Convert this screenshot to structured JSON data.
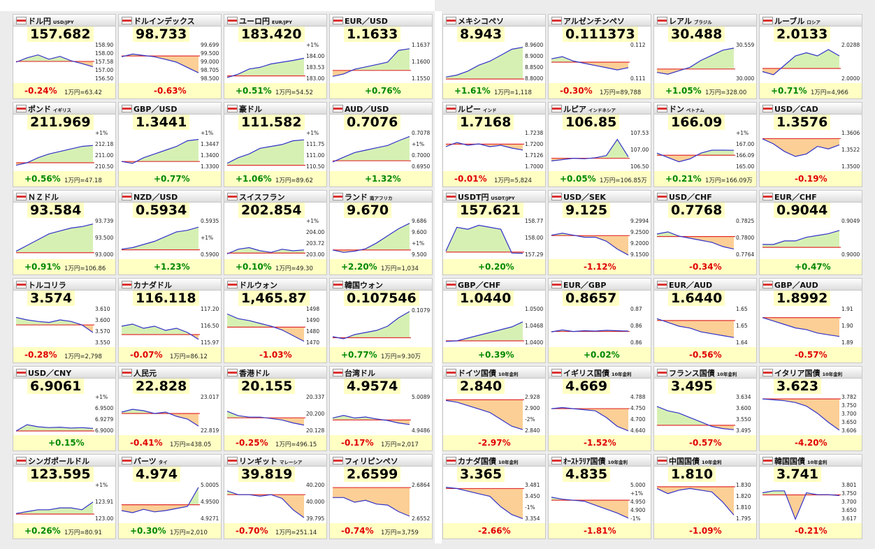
{
  "tiles": [
    {
      "name": "ドル円",
      "sub": "USD/JPY",
      "price": "157.682",
      "change": "-0.24%",
      "yen": "1万円=63.42",
      "labels": [
        "158.90",
        "158.00",
        "157.58",
        "157.00",
        "156.50"
      ],
      "ref": 157.95,
      "ylim": [
        156.6,
        159.2
      ],
      "line": [
        157.9,
        158.2,
        158.4,
        158.1,
        158.3,
        158.0,
        157.8,
        157.58
      ]
    },
    {
      "name": "ドルインデックス",
      "price": "98.733",
      "change": "-0.63%",
      "labels": [
        "99.699",
        "99.500",
        "99.000",
        "98.705",
        "98.500"
      ],
      "ref": 99.33,
      "ylim": [
        98.4,
        99.8
      ],
      "line": [
        99.3,
        99.4,
        99.35,
        99.3,
        99.2,
        99.1,
        98.9,
        98.705
      ]
    },
    {
      "name": "ユーロ円",
      "sub": "EUR/JPY",
      "price": "183.420",
      "change": "+0.51%",
      "yen": "1万円=54.52",
      "labels": [
        "+1%",
        "184.00",
        "183.53",
        "183.00"
      ],
      "ref": 182.5,
      "ylim": [
        182.2,
        184.4
      ],
      "line": [
        182.4,
        182.6,
        182.9,
        183.0,
        183.2,
        183.3,
        183.4,
        183.53
      ]
    },
    {
      "name": "EUR／USD",
      "price": "1.1633",
      "change": "+0.76%",
      "labels": [
        "1.1637",
        "1.1600",
        "1.1550"
      ],
      "ref": 1.1545,
      "ylim": [
        1.15,
        1.166
      ],
      "line": [
        1.152,
        1.153,
        1.155,
        1.156,
        1.157,
        1.158,
        1.163,
        1.1637
      ]
    },
    {
      "name": "メキシコペソ",
      "price": "8.943",
      "change": "+1.61%",
      "yen": "1万円=1,118",
      "labels": [
        "8.9600",
        "8.9000",
        "8.8500",
        "8.8000"
      ],
      "ref": 8.8,
      "ylim": [
        8.79,
        8.98
      ],
      "line": [
        8.81,
        8.82,
        8.84,
        8.87,
        8.89,
        8.92,
        8.95,
        8.96
      ]
    },
    {
      "name": "アルゼンチンペソ",
      "price": "0.111373",
      "change": "-0.30%",
      "yen": "1万円=89,788",
      "labels": [
        "0.112",
        "0.111"
      ],
      "ref": 0.11135,
      "ylim": [
        0.1105,
        0.1122
      ],
      "line": [
        0.1115,
        0.1116,
        0.1114,
        0.1113,
        0.1112,
        0.1111,
        0.111,
        0.1111
      ]
    },
    {
      "name": "レアル",
      "sub": "ブラジル",
      "price": "30.488",
      "change": "+1.05%",
      "yen": "1万円=328.00",
      "labels": [
        "30.559",
        "30.000"
      ],
      "ref": 29.95,
      "ylim": [
        29.6,
        30.7
      ],
      "line": [
        29.85,
        29.8,
        29.9,
        30.0,
        30.2,
        30.35,
        30.5,
        30.559
      ]
    },
    {
      "name": "ルーブル",
      "sub": "ロシア",
      "price": "2.0133",
      "change": "+0.71%",
      "yen": "1万円=4,966",
      "labels": [
        "2.0288",
        "2.0000"
      ],
      "ref": 2.0,
      "ylim": [
        1.98,
        2.04
      ],
      "line": [
        1.995,
        1.99,
        2.005,
        2.02,
        2.025,
        2.02,
        2.03,
        2.02
      ]
    },
    {
      "name": "ポンド",
      "sub": "イギリス",
      "price": "211.969",
      "change": "+0.56%",
      "yen": "1万円=47.18",
      "labels": [
        "+1%",
        "212.18",
        "211.00",
        "210.50"
      ],
      "ref": 210.8,
      "ylim": [
        210.3,
        213.3
      ],
      "line": [
        210.6,
        210.8,
        211.2,
        211.5,
        211.7,
        211.9,
        212.1,
        212.18
      ]
    },
    {
      "name": "GBP／USD",
      "price": "1.3441",
      "change": "+0.77%",
      "labels": [
        "+1%",
        "1.3447",
        "1.3400",
        "1.3300"
      ],
      "ref": 1.333,
      "ylim": [
        1.329,
        1.349
      ],
      "line": [
        1.333,
        1.332,
        1.335,
        1.337,
        1.339,
        1.341,
        1.344,
        1.3447
      ]
    },
    {
      "name": "豪ドル",
      "price": "111.582",
      "change": "+1.06%",
      "yen": "1万円=89.62",
      "labels": [
        "+1%",
        "111.75",
        "111.00",
        "110.50"
      ],
      "ref": 110.4,
      "ylim": [
        110.2,
        112.2
      ],
      "line": [
        110.5,
        110.8,
        111.0,
        111.3,
        111.4,
        111.5,
        111.7,
        111.75
      ]
    },
    {
      "name": "AUD／USD",
      "price": "0.7076",
      "change": "+1.32%",
      "labels": [
        "0.7078",
        "+1%",
        "0.7000",
        "0.6950"
      ],
      "ref": 0.6975,
      "ylim": [
        0.694,
        0.71
      ],
      "line": [
        0.697,
        0.699,
        0.701,
        0.702,
        0.703,
        0.704,
        0.706,
        0.7078
      ]
    },
    {
      "name": "ルピー",
      "sub": "インド",
      "price": "1.7168",
      "change": "-0.01%",
      "yen": "1万円=5,824",
      "labels": [
        "1.7238",
        "1.7200",
        "1.7126",
        "1.7000"
      ],
      "ref": 1.7168,
      "ylim": [
        1.699,
        1.726
      ],
      "line": [
        1.715,
        1.718,
        1.716,
        1.717,
        1.715,
        1.716,
        1.714,
        1.7126
      ]
    },
    {
      "name": "ルピア",
      "sub": "インドネシア",
      "price": "106.85",
      "change": "+0.05%",
      "yen": "1万円=106.85万",
      "labels": [
        "107.53",
        "107.00",
        "106.50"
      ],
      "ref": 106.8,
      "ylim": [
        106.4,
        107.8
      ],
      "line": [
        106.7,
        106.75,
        106.8,
        106.78,
        106.82,
        106.9,
        107.5,
        106.85
      ]
    },
    {
      "name": "ドン",
      "sub": "ベトナム",
      "price": "166.09",
      "change": "+0.21%",
      "yen": "1万円=166.09万",
      "labels": [
        "+1%",
        "167.00",
        "166.09",
        "165.00"
      ],
      "ref": 165.75,
      "ylim": [
        164.8,
        167.4
      ],
      "line": [
        165.9,
        165.6,
        165.3,
        165.5,
        165.9,
        166.1,
        166.1,
        166.09
      ]
    },
    {
      "name": "USD／CAD",
      "price": "1.3576",
      "change": "-0.19%",
      "labels": [
        "1.3606",
        "1.3522",
        "1.3500"
      ],
      "ref": 1.3601,
      "ylim": [
        1.348,
        1.363
      ],
      "line": [
        1.36,
        1.358,
        1.355,
        1.353,
        1.354,
        1.357,
        1.356,
        1.3576
      ]
    },
    {
      "name": "ＮＺドル",
      "price": "93.584",
      "change": "+0.91%",
      "yen": "1万円=106.86",
      "labels": [
        "93.739",
        "93.500",
        "93.000"
      ],
      "ref": 92.75,
      "ylim": [
        92.6,
        93.9
      ],
      "line": [
        92.8,
        93.0,
        93.2,
        93.4,
        93.5,
        93.6,
        93.65,
        93.739
      ]
    },
    {
      "name": "NZD／USD",
      "price": "0.5934",
      "change": "+1.23%",
      "labels": [
        "0.5935",
        "+1%",
        "0.5900"
      ],
      "ref": 0.5863,
      "ylim": [
        0.584,
        0.596
      ],
      "line": [
        0.5865,
        0.587,
        0.588,
        0.589,
        0.5905,
        0.592,
        0.5925,
        0.5935
      ]
    },
    {
      "name": "スイスフラン",
      "price": "202.854",
      "change": "+0.10%",
      "yen": "1万円=49.30",
      "labels": [
        "+1%",
        "204.00",
        "203.72",
        "203.00"
      ],
      "ref": 202.65,
      "ylim": [
        202.4,
        204.8
      ],
      "line": [
        202.6,
        202.9,
        203.0,
        202.8,
        202.7,
        202.9,
        202.8,
        202.854
      ]
    },
    {
      "name": "ランド",
      "sub": "南アフリカ",
      "price": "9.670",
      "change": "+2.20%",
      "yen": "1万円=1,034",
      "labels": [
        "9.686",
        "9.600",
        "+1%",
        "9.500"
      ],
      "ref": 9.46,
      "ylim": [
        9.4,
        9.72
      ],
      "line": [
        9.46,
        9.44,
        9.45,
        9.47,
        9.52,
        9.58,
        9.64,
        9.686
      ]
    },
    {
      "name": "USDT円",
      "sub": "USDT/JPY",
      "price": "157.621",
      "change": "+0.20%",
      "labels": [
        "158.77",
        "158.00",
        "157.29"
      ],
      "ref": 157.35,
      "ylim": [
        157.1,
        159.0
      ],
      "line": [
        157.4,
        158.6,
        158.5,
        158.7,
        158.6,
        158.5,
        157.3,
        157.29
      ]
    },
    {
      "name": "USD／SEK",
      "price": "9.125",
      "change": "-1.12%",
      "labels": [
        "9.2994",
        "9.2500",
        "9.2000",
        "9.1500"
      ],
      "ref": 9.228,
      "ylim": [
        9.12,
        9.31
      ],
      "line": [
        9.23,
        9.24,
        9.23,
        9.22,
        9.22,
        9.2,
        9.16,
        9.13
      ]
    },
    {
      "name": "USD／CHF",
      "price": "0.7768",
      "change": "-0.34%",
      "labels": [
        "0.7825",
        "0.7800",
        "0.7764"
      ],
      "ref": 0.7794,
      "ylim": [
        0.7745,
        0.7835
      ],
      "line": [
        0.78,
        0.7805,
        0.7795,
        0.779,
        0.7785,
        0.778,
        0.777,
        0.7764
      ]
    },
    {
      "name": "EUR／CHF",
      "price": "0.9044",
      "change": "+0.47%",
      "labels": [
        "0.9049",
        "0.9000"
      ],
      "ref": 0.9002,
      "ylim": [
        0.8975,
        0.908
      ],
      "line": [
        0.901,
        0.901,
        0.902,
        0.902,
        0.903,
        0.9035,
        0.904,
        0.9049
      ]
    },
    {
      "name": "トルコリラ",
      "price": "3.574",
      "change": "-0.28%",
      "yen": "1万円=2,798",
      "labels": [
        "3.610",
        "3.600",
        "3.570",
        "3.550"
      ],
      "ref": 3.585,
      "ylim": [
        3.545,
        3.62
      ],
      "line": [
        3.6,
        3.595,
        3.592,
        3.59,
        3.595,
        3.592,
        3.585,
        3.57
      ]
    },
    {
      "name": "カナダドル",
      "price": "116.118",
      "change": "-0.07%",
      "yen": "1万円=86.12",
      "labels": [
        "117.20",
        "116.50",
        "115.97"
      ],
      "ref": 116.2,
      "ylim": [
        115.7,
        117.5
      ],
      "line": [
        116.6,
        116.7,
        116.5,
        116.6,
        116.4,
        116.5,
        116.3,
        115.97
      ]
    },
    {
      "name": "ドルウォン",
      "price": "1,465.87",
      "change": "-1.03%",
      "labels": [
        "1498",
        "1490",
        "1480",
        "1470"
      ],
      "ref": 1481,
      "ylim": [
        1462,
        1502
      ],
      "line": [
        1495,
        1490,
        1488,
        1485,
        1482,
        1478,
        1472,
        1466
      ]
    },
    {
      "name": "韓国ウォン",
      "price": "0.107546",
      "change": "+0.77%",
      "yen": "1万円=9.30万",
      "labels": [
        "0.1079"
      ],
      "ref": 0.10665,
      "ylim": [
        0.1063,
        0.1081
      ],
      "line": [
        0.1067,
        0.1066,
        0.1068,
        0.1069,
        0.107,
        0.1072,
        0.1076,
        0.1079
      ]
    },
    {
      "name": "GBP／CHF",
      "price": "1.0440",
      "change": "+0.39%",
      "labels": [
        "1.0500",
        "1.0468",
        "1.0400"
      ],
      "ref": 1.04,
      "ylim": [
        1.0385,
        1.052
      ],
      "line": [
        1.0398,
        1.04,
        1.041,
        1.042,
        1.043,
        1.044,
        1.045,
        1.0468
      ]
    },
    {
      "name": "EUR／GBP",
      "price": "0.8657",
      "change": "+0.02%",
      "labels": [
        "0.87",
        "0.86",
        "0.86"
      ],
      "ref": 0.8656,
      "ylim": [
        0.862,
        0.872
      ],
      "line": [
        0.8655,
        0.866,
        0.8656,
        0.8658,
        0.8657,
        0.8659,
        0.8658,
        0.8657
      ]
    },
    {
      "name": "EUR／AUD",
      "price": "1.6440",
      "change": "-0.56%",
      "labels": [
        "1.65",
        "1.65",
        "1.64"
      ],
      "ref": 1.653,
      "ylim": [
        1.64,
        1.66
      ],
      "line": [
        1.654,
        1.652,
        1.65,
        1.649,
        1.647,
        1.646,
        1.645,
        1.644
      ]
    },
    {
      "name": "GBP／AUD",
      "price": "1.8992",
      "change": "-0.57%",
      "labels": [
        "1.91",
        "1.90",
        "1.89"
      ],
      "ref": 1.909,
      "ylim": [
        1.893,
        1.915
      ],
      "line": [
        1.909,
        1.907,
        1.905,
        1.903,
        1.902,
        1.9,
        1.899,
        1.898
      ]
    },
    {
      "name": "USD／CNY",
      "price": "6.9061",
      "change": "+0.15%",
      "labels": [
        "+1%",
        "6.9500",
        "6.9279",
        "6.9000"
      ],
      "ref": 6.9,
      "ylim": [
        6.895,
        6.985
      ],
      "line": [
        6.9,
        6.915,
        6.91,
        6.908,
        6.909,
        6.907,
        6.908,
        6.906
      ]
    },
    {
      "name": "人民元",
      "price": "22.828",
      "change": "-0.41%",
      "yen": "1万円=438.05",
      "labels": [
        "23.017",
        "22.819"
      ],
      "ref": 22.92,
      "ylim": [
        22.78,
        23.05
      ],
      "line": [
        22.93,
        22.95,
        22.94,
        22.92,
        22.93,
        22.9,
        22.88,
        22.83
      ]
    },
    {
      "name": "香港ドル",
      "price": "20.155",
      "change": "-0.25%",
      "yen": "1万円=496.15",
      "labels": [
        "20.337",
        "20.200",
        "20.128"
      ],
      "ref": 20.205,
      "ylim": [
        20.1,
        20.36
      ],
      "line": [
        20.25,
        20.22,
        20.21,
        20.21,
        20.2,
        20.19,
        20.17,
        20.155
      ]
    },
    {
      "name": "台湾ドル",
      "price": "4.9574",
      "change": "-0.17%",
      "yen": "1万円=2,017",
      "labels": [
        "5.0089",
        "4.9486"
      ],
      "ref": 4.966,
      "ylim": [
        4.94,
        5.015
      ],
      "line": [
        4.97,
        4.975,
        4.97,
        4.972,
        4.968,
        4.965,
        4.96,
        4.957
      ]
    },
    {
      "name": "ドイツ国債",
      "sub": "10年金利",
      "price": "2.840",
      "change": "-2.97%",
      "labels": [
        "2.928",
        "2.900",
        "-2%",
        "2.840"
      ],
      "ref": 2.927,
      "ylim": [
        2.83,
        2.94
      ],
      "line": [
        2.925,
        2.92,
        2.91,
        2.9,
        2.89,
        2.87,
        2.85,
        2.84
      ]
    },
    {
      "name": "イギリス国債",
      "sub": "10年金利",
      "price": "4.669",
      "change": "-1.52%",
      "labels": [
        "4.788",
        "4.750",
        "4.700",
        "4.640"
      ],
      "ref": 4.74,
      "ylim": [
        4.63,
        4.8
      ],
      "line": [
        4.74,
        4.745,
        4.74,
        4.735,
        4.73,
        4.7,
        4.66,
        4.64
      ]
    },
    {
      "name": "フランス国債",
      "sub": "10年金利",
      "price": "3.495",
      "change": "-0.57%",
      "labels": [
        "3.634",
        "3.600",
        "3.550",
        "3.495"
      ],
      "ref": 3.515,
      "ylim": [
        3.48,
        3.65
      ],
      "line": [
        3.6,
        3.58,
        3.57,
        3.55,
        3.53,
        3.51,
        3.5,
        3.495
      ]
    },
    {
      "name": "イタリア国債",
      "sub": "10年金利",
      "price": "3.623",
      "change": "-4.20%",
      "labels": [
        "3.782",
        "3.750",
        "3.700",
        "3.650",
        "3.606"
      ],
      "ref": 3.78,
      "ylim": [
        3.59,
        3.8
      ],
      "line": [
        3.78,
        3.775,
        3.77,
        3.76,
        3.74,
        3.7,
        3.65,
        3.606
      ]
    },
    {
      "name": "シンガポールドル",
      "price": "123.595",
      "change": "+0.26%",
      "yen": "1万円=80.91",
      "labels": [
        "+1%",
        "123.91",
        "123.00"
      ],
      "ref": 123.27,
      "ylim": [
        122.9,
        124.9
      ],
      "line": [
        123.3,
        123.4,
        123.5,
        123.5,
        123.6,
        123.6,
        123.5,
        123.91
      ]
    },
    {
      "name": "バーツ",
      "sub": "タイ",
      "price": "4.974",
      "change": "+0.30%",
      "yen": "1万円=2,010",
      "labels": [
        "5.0005",
        "4.9500",
        "4.9271"
      ],
      "ref": 4.959,
      "ylim": [
        4.92,
        5.01
      ],
      "line": [
        4.945,
        4.94,
        4.948,
        4.942,
        4.945,
        4.95,
        4.955,
        5.0005
      ]
    },
    {
      "name": "リンギット",
      "sub": "マレーシア",
      "price": "39.819",
      "change": "-0.70%",
      "yen": "1万円=251.14",
      "labels": [
        "40.200",
        "40.000",
        "39.795"
      ],
      "ref": 40.1,
      "ylim": [
        39.75,
        40.25
      ],
      "line": [
        40.15,
        40.1,
        40.1,
        40.08,
        40.1,
        40.05,
        39.9,
        39.795
      ]
    },
    {
      "name": "フィリピンペソ",
      "price": "2.6599",
      "change": "-0.74%",
      "yen": "1万円=3,759",
      "labels": [
        "2.6864",
        "2.6552"
      ],
      "ref": 2.6855,
      "ylim": [
        2.65,
        2.69
      ],
      "line": [
        2.675,
        2.675,
        2.67,
        2.672,
        2.668,
        2.667,
        2.66,
        2.6552
      ]
    },
    {
      "name": "カナダ国債",
      "sub": "10年金利",
      "price": "3.365",
      "change": "-2.66%",
      "labels": [
        "3.481",
        "3.450",
        "-1%",
        "3.354"
      ],
      "ref": 3.47,
      "ylim": [
        3.345,
        3.49
      ],
      "line": [
        3.475,
        3.47,
        3.46,
        3.45,
        3.44,
        3.4,
        3.37,
        3.354
      ]
    },
    {
      "name": "ｵｰｽﾄﾗﾘｱ国債",
      "sub": "10年金利",
      "price": "4.835",
      "change": "-1.81%",
      "labels": [
        "5.000",
        "+1%",
        "4.950",
        "4.900",
        "-1%"
      ],
      "ref": 4.925,
      "ylim": [
        4.82,
        5.01
      ],
      "line": [
        4.94,
        4.93,
        4.925,
        4.92,
        4.9,
        4.88,
        4.86,
        4.835
      ]
    },
    {
      "name": "中国国債",
      "sub": "10年金利",
      "price": "1.810",
      "change": "-1.09%",
      "labels": [
        "1.830",
        "1.820",
        "1.810",
        "1.795"
      ],
      "ref": 1.83,
      "ylim": [
        1.79,
        1.834
      ],
      "line": [
        1.828,
        1.822,
        1.826,
        1.828,
        1.826,
        1.824,
        1.812,
        1.797
      ]
    },
    {
      "name": "韓国国債",
      "sub": "10年金利",
      "price": "3.741",
      "change": "-0.21%",
      "labels": [
        "3.801",
        "3.750",
        "3.700",
        "3.650",
        "3.617"
      ],
      "ref": 3.749,
      "ylim": [
        3.61,
        3.81
      ],
      "line": [
        3.76,
        3.77,
        3.77,
        3.62,
        3.76,
        3.75,
        3.75,
        3.745
      ]
    }
  ]
}
